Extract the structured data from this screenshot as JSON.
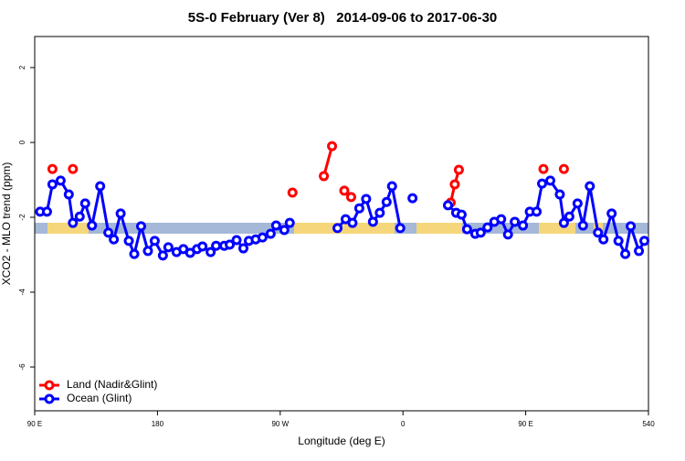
{
  "chart_data": {
    "type": "line",
    "title": "5S-0 February (Ver 8)   2014-09-06 to 2017-06-30",
    "x_label": "Longitude (deg E)",
    "y_label": "XCO2 - MLO trend (ppm)",
    "xlim": [
      90,
      540
    ],
    "ylim": [
      -7.17,
      2.83
    ],
    "xticks": [
      {
        "value": 90,
        "label": "90 E"
      },
      180,
      {
        "value": 270,
        "label": "90 W"
      },
      {
        "value": 360,
        "label": "0"
      },
      {
        "value": 450,
        "label": "90 E"
      },
      540
    ],
    "yticks": [
      2,
      0,
      -2,
      -4,
      -6
    ],
    "legend": "bottom-left",
    "series": [
      {
        "name": "Land (Nadir&Glint)",
        "color": "#ff0000",
        "x": [
          103,
          110,
          118,
          200,
          279,
          290,
          302,
          308,
          312,
          317,
          322,
          350,
          395,
          398,
          401,
          430,
          463,
          470,
          478
        ],
        "values": [
          -0.71,
          null,
          -0.71,
          null,
          -1.34,
          null,
          -0.9,
          -0.1,
          null,
          -1.29,
          -1.46,
          null,
          -1.61,
          -1.12,
          -0.73,
          null,
          -0.71,
          null,
          -0.71
        ]
      },
      {
        "name": "Ocean (Glint)",
        "color": "#0000ff",
        "x": [
          94,
          99,
          103,
          109,
          115,
          118,
          123,
          127,
          132,
          138,
          144,
          148,
          153,
          159,
          163,
          168,
          173,
          178,
          184,
          188,
          194,
          199,
          204,
          209,
          213,
          219,
          223,
          229,
          233,
          238,
          243,
          247,
          252,
          257,
          263,
          267,
          273,
          277,
          300,
          312,
          318,
          323,
          328,
          333,
          338,
          343,
          348,
          352,
          358,
          362,
          367,
          380,
          393,
          399,
          403,
          407,
          413,
          417,
          422,
          427,
          432,
          437,
          442,
          448,
          453,
          458,
          462,
          468,
          475,
          478,
          482,
          488,
          492,
          497,
          503,
          507,
          513,
          518,
          523,
          527,
          533,
          537
        ],
        "values": [
          -1.85,
          -1.85,
          -1.12,
          -1.02,
          -1.39,
          -2.15,
          -1.98,
          -1.63,
          -2.22,
          -1.17,
          -2.41,
          -2.59,
          -1.9,
          -2.63,
          -2.98,
          -2.24,
          -2.9,
          -2.63,
          -3.02,
          -2.8,
          -2.93,
          -2.85,
          -2.95,
          -2.85,
          -2.78,
          -2.93,
          -2.76,
          -2.76,
          -2.73,
          -2.61,
          -2.83,
          -2.63,
          -2.59,
          -2.54,
          -2.44,
          -2.22,
          -2.34,
          -2.15,
          null,
          -2.29,
          -2.05,
          -2.15,
          -1.76,
          -1.51,
          -2.12,
          -1.88,
          -1.59,
          -1.17,
          -2.29,
          null,
          -1.49,
          null,
          -1.68,
          -1.88,
          -1.93,
          -2.32,
          -2.44,
          -2.41,
          -2.27,
          -2.12,
          -2.05,
          -2.46,
          -2.12,
          -2.22,
          -1.85,
          -1.85,
          -1.1,
          -1.02,
          -1.39,
          -2.15,
          -1.98,
          -1.63,
          -2.22,
          -1.17,
          -2.41,
          -2.59,
          -1.9,
          -2.63,
          -2.98,
          -2.24,
          -2.9,
          -2.63
        ]
      }
    ]
  }
}
